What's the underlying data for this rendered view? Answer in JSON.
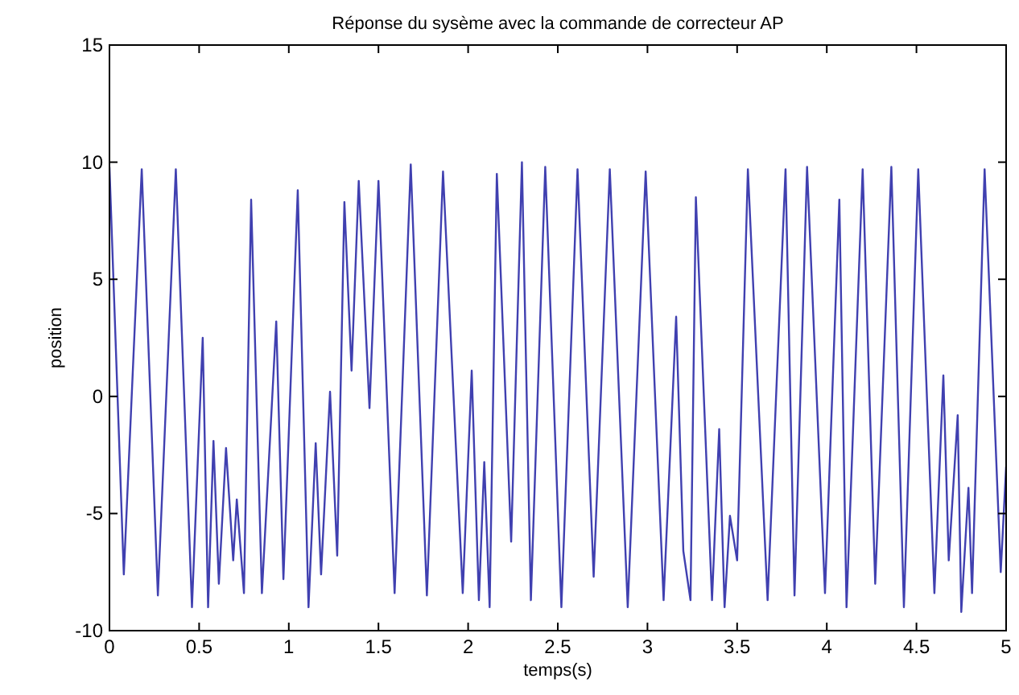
{
  "chart_data": {
    "type": "line",
    "title": "Réponse du sysème avec la commande de correcteur AP",
    "xlabel": "temps(s)",
    "ylabel": "position",
    "xlim": [
      0,
      5
    ],
    "ylim": [
      -10,
      15
    ],
    "xticks": [
      0,
      0.5,
      1,
      1.5,
      2,
      2.5,
      3,
      3.5,
      4,
      4.5,
      5
    ],
    "yticks": [
      -10,
      -5,
      0,
      5,
      10,
      15
    ],
    "grid": false,
    "series": [
      {
        "color": "#4040b0",
        "x": [
          0,
          0.08,
          0.18,
          0.27,
          0.37,
          0.46,
          0.52,
          0.55,
          0.58,
          0.61,
          0.65,
          0.69,
          0.71,
          0.75,
          0.79,
          0.85,
          0.93,
          0.97,
          1.05,
          1.11,
          1.15,
          1.18,
          1.23,
          1.27,
          1.31,
          1.35,
          1.39,
          1.45,
          1.5,
          1.59,
          1.68,
          1.77,
          1.86,
          1.97,
          2.02,
          2.06,
          2.09,
          2.12,
          2.16,
          2.24,
          2.3,
          2.35,
          2.43,
          2.52,
          2.61,
          2.7,
          2.79,
          2.89,
          2.99,
          3.09,
          3.16,
          3.2,
          3.24,
          3.27,
          3.36,
          3.4,
          3.43,
          3.46,
          3.5,
          3.56,
          3.67,
          3.77,
          3.82,
          3.89,
          3.99,
          4.07,
          4.11,
          4.2,
          4.27,
          4.36,
          4.43,
          4.51,
          4.6,
          4.65,
          4.68,
          4.73,
          4.75,
          4.79,
          4.81,
          4.88,
          4.97,
          5
        ],
        "values": [
          9.8,
          -7.6,
          9.7,
          -8.5,
          9.7,
          -9,
          2.5,
          -9,
          -1.9,
          -8,
          -2.2,
          -7,
          -4.4,
          -8.4,
          8.4,
          -8.4,
          3.2,
          -7.8,
          8.8,
          -9,
          -2,
          -7.6,
          0.2,
          -6.8,
          8.3,
          1.1,
          9.2,
          -0.5,
          9.2,
          -8.4,
          9.9,
          -8.5,
          9.6,
          -8.4,
          1.1,
          -8.7,
          -2.8,
          -9,
          9.5,
          -6.2,
          10,
          -8.7,
          9.8,
          -9,
          9.7,
          -7.7,
          9.7,
          -9,
          9.6,
          -8.7,
          3.4,
          -6.6,
          -8.7,
          8.5,
          -8.7,
          -1.4,
          -9,
          -5.1,
          -7,
          9.7,
          -8.7,
          9.7,
          -8.5,
          9.8,
          -8.4,
          8.4,
          -9,
          9.7,
          -8,
          9.8,
          -9,
          9.7,
          -8.4,
          0.9,
          -7,
          -0.8,
          -9.2,
          -3.9,
          -8.4,
          9.7,
          -7.5,
          -3
        ]
      }
    ]
  }
}
